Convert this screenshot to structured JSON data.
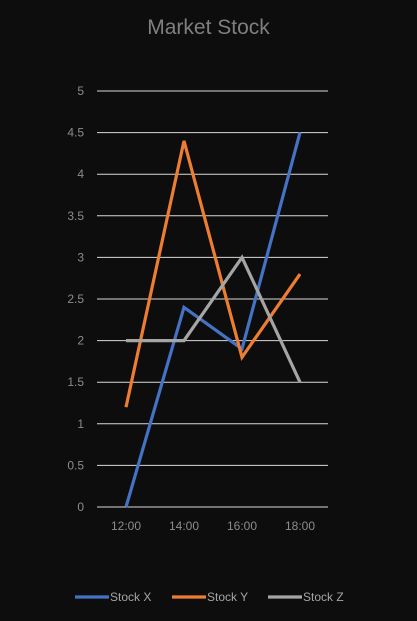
{
  "chart_data": {
    "type": "line",
    "title": "Market Stock",
    "xlabel": "",
    "ylabel": "",
    "categories": [
      "12:00",
      "14:00",
      "16:00",
      "18:00"
    ],
    "ylim": [
      0,
      5
    ],
    "yticks": [
      "0",
      "0.5",
      "1",
      "1.5",
      "2",
      "2.5",
      "3",
      "3.5",
      "4",
      "4.5",
      "5"
    ],
    "grid": true,
    "legend_position": "bottom",
    "series": [
      {
        "name": "Stock X",
        "color": "#4472c4",
        "values": [
          0,
          2.4,
          1.9,
          4.5
        ]
      },
      {
        "name": "Stock Y",
        "color": "#ed7d31",
        "values": [
          1.2,
          4.4,
          1.8,
          2.8
        ]
      },
      {
        "name": "Stock Z",
        "color": "#a5a5a5",
        "values": [
          2,
          2,
          3,
          1.5
        ]
      }
    ]
  }
}
